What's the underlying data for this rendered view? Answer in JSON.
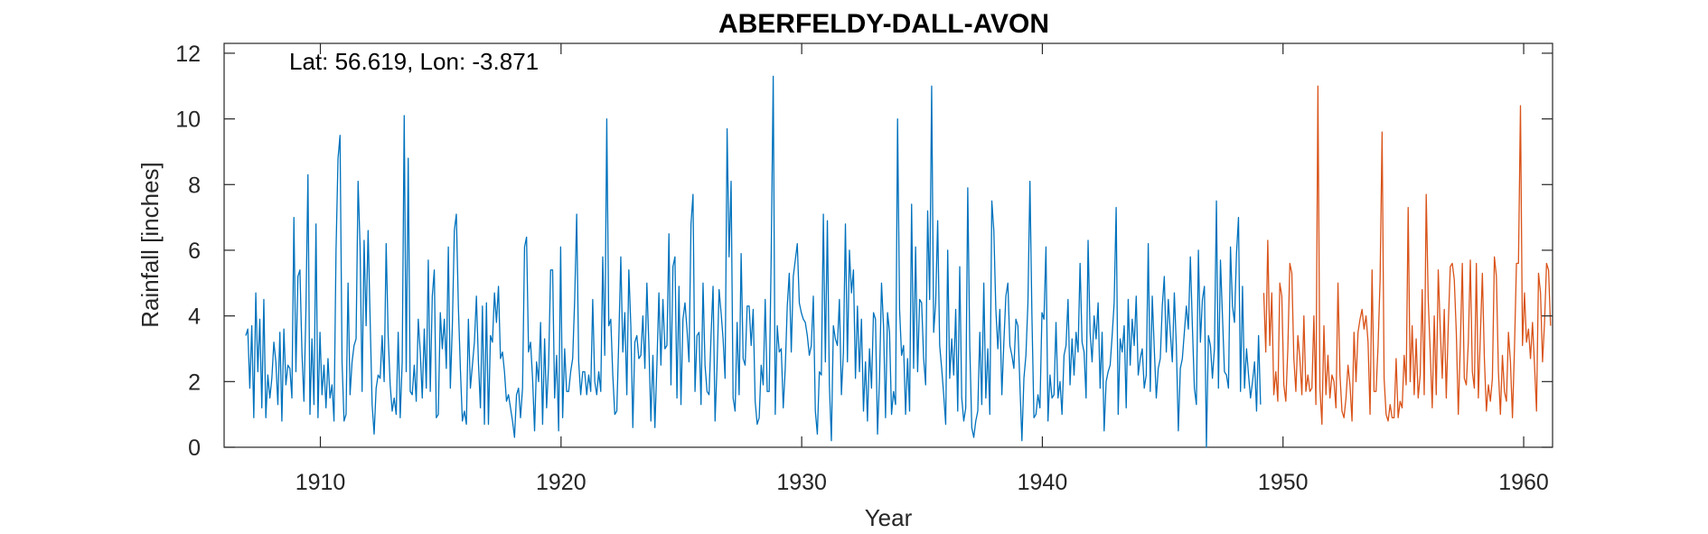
{
  "chart_data": {
    "type": "line",
    "title": "ABERFELDY-DALL-AVON",
    "xlabel": "Year",
    "ylabel": "Rainfall [inches]",
    "annotation": "Lat: 56.619, Lon: -3.871",
    "xlim": [
      1906,
      1961.2
    ],
    "ylim": [
      0,
      12.3
    ],
    "xticks": [
      1910,
      1920,
      1930,
      1940,
      1950,
      1960
    ],
    "yticks": [
      0,
      2,
      4,
      6,
      8,
      10,
      12
    ],
    "grid": false,
    "legend": "none",
    "series": [
      {
        "color": "#0072BD",
        "x_start": 1906.9,
        "x_step": 0.0833333,
        "values": [
          3.4,
          3.6,
          1.8,
          3.7,
          0.9,
          4.7,
          2.3,
          3.9,
          1.2,
          4.5,
          0.9,
          2.2,
          1.5,
          2.1,
          3.2,
          2.6,
          1.3,
          3.5,
          0.8,
          3.6,
          1.9,
          2.5,
          2.4,
          1.5,
          7.0,
          2.3,
          5.2,
          5.4,
          2.9,
          1.4,
          4.2,
          8.3,
          1.0,
          3.3,
          1.3,
          6.8,
          0.9,
          3.5,
          1.6,
          2.5,
          1.2,
          2.7,
          1.5,
          1.9,
          0.8,
          6.0,
          8.8,
          9.5,
          2.6,
          0.8,
          1.0,
          5.0,
          1.6,
          2.6,
          3.1,
          3.3,
          8.1,
          6.1,
          1.7,
          6.3,
          3.7,
          6.6,
          3.9,
          1.3,
          0.4,
          1.8,
          2.2,
          2.1,
          3.4,
          2.0,
          6.2,
          3.4,
          1.9,
          1.1,
          1.5,
          1.0,
          3.5,
          0.9,
          2.6,
          10.1,
          2.3,
          8.8,
          1.7,
          1.6,
          2.5,
          1.4,
          3.9,
          2.9,
          1.5,
          3.6,
          1.8,
          5.7,
          1.7,
          4.6,
          5.4,
          0.9,
          1.0,
          4.1,
          3.0,
          3.9,
          2.4,
          6.1,
          1.8,
          3.7,
          6.6,
          7.1,
          4.3,
          2.4,
          0.8,
          1.1,
          0.7,
          3.9,
          1.8,
          2.5,
          3.2,
          4.6,
          2.6,
          1.2,
          4.3,
          0.7,
          4.4,
          0.7,
          3.4,
          3.2,
          4.7,
          3.8,
          4.9,
          2.7,
          2.9,
          2.3,
          1.4,
          1.6,
          1.2,
          0.8,
          0.3,
          1.6,
          1.8,
          0.9,
          1.8,
          6.1,
          6.4,
          2.9,
          3.2,
          2.1,
          0.5,
          2.6,
          2.0,
          3.8,
          0.7,
          3.3,
          1.2,
          2.5,
          5.4,
          5.4,
          1.5,
          2.8,
          0.5,
          6.1,
          0.9,
          3.0,
          1.7,
          1.7,
          2.3,
          2.7,
          4.5,
          7.1,
          2.6,
          1.6,
          2.3,
          2.3,
          1.6,
          2.2,
          1.7,
          4.5,
          2.0,
          1.6,
          2.3,
          1.7,
          5.8,
          2.8,
          10.0,
          3.7,
          3.9,
          2.2,
          1.0,
          1.1,
          3.3,
          5.8,
          2.9,
          4.1,
          1.6,
          5.4,
          3.7,
          0.6,
          3.2,
          3.4,
          2.7,
          2.8,
          4.0,
          2.4,
          5.0,
          3.1,
          0.8,
          2.8,
          0.6,
          2.5,
          4.7,
          2.5,
          4.5,
          3.0,
          3.1,
          6.5,
          1.9,
          5.5,
          5.8,
          1.5,
          4.9,
          1.3,
          3.9,
          4.4,
          3.6,
          2.6,
          6.8,
          7.7,
          1.7,
          3.4,
          3.5,
          1.3,
          5.0,
          2.5,
          1.7,
          1.6,
          3.4,
          4.9,
          0.8,
          2.5,
          4.8,
          4.1,
          3.3,
          2.1,
          9.7,
          5.8,
          8.1,
          1.5,
          1.1,
          3.8,
          1.6,
          5.9,
          2.7,
          2.5,
          4.3,
          4.3,
          3.1,
          4.2,
          1.4,
          0.7,
          0.9,
          2.5,
          1.9,
          4.5,
          1.7,
          1.7,
          5.9,
          11.3,
          1.0,
          3.7,
          2.9,
          3.0,
          1.2,
          2.4,
          4.3,
          5.3,
          2.9,
          5.2,
          5.7,
          6.2,
          4.4,
          4.1,
          3.9,
          3.8,
          3.4,
          2.8,
          3.1,
          4.6,
          1.1,
          0.4,
          2.3,
          2.2,
          7.1,
          2.6,
          6.9,
          1.9,
          0.2,
          3.7,
          3.3,
          3.1,
          4.5,
          1.6,
          2.9,
          6.8,
          2.6,
          6.0,
          4.7,
          5.4,
          2.1,
          4.3,
          2.3,
          3.9,
          1.1,
          2.6,
          0.8,
          3.0,
          1.8,
          4.1,
          3.9,
          0.4,
          2.1,
          5.0,
          3.7,
          0.9,
          4.1,
          3.5,
          1.0,
          1.7,
          1.3,
          10.0,
          4.2,
          2.8,
          3.1,
          1.0,
          2.7,
          1.1,
          7.4,
          2.4,
          6.1,
          2.3,
          4.5,
          4.4,
          2.7,
          1.9,
          7.2,
          4.5,
          11.0,
          3.5,
          4.4,
          6.9,
          3.1,
          2.4,
          1.6,
          0.7,
          6.0,
          2.1,
          3.3,
          2.2,
          4.2,
          1.1,
          5.5,
          1.5,
          0.8,
          1.2,
          7.9,
          3.1,
          0.6,
          0.3,
          0.8,
          1.1,
          3.5,
          1.3,
          5.0,
          1.5,
          3.0,
          1.0,
          7.5,
          6.6,
          4.2,
          3.0,
          4.2,
          1.6,
          3.2,
          4.6,
          5.0,
          3.1,
          2.8,
          2.4,
          3.9,
          3.7,
          1.9,
          0.2,
          2.1,
          2.8,
          4.4,
          8.1,
          4.0,
          0.9,
          1.0,
          1.6,
          1.2,
          4.1,
          3.9,
          6.1,
          0.8,
          2.2,
          1.5,
          1.6,
          3.8,
          1.5,
          2.0,
          1.0,
          2.8,
          3.1,
          4.5,
          1.9,
          3.3,
          2.2,
          3.5,
          2.9,
          5.6,
          3.2,
          2.9,
          1.5,
          6.3,
          3.5,
          2.6,
          4.0,
          3.3,
          4.4,
          1.8,
          3.5,
          0.5,
          2.0,
          2.3,
          2.5,
          3.4,
          4.4,
          7.3,
          1.0,
          3.3,
          2.9,
          3.7,
          1.2,
          4.5,
          2.5,
          3.9,
          3.1,
          4.6,
          2.2,
          2.7,
          3.0,
          1.8,
          2.2,
          6.2,
          1.7,
          4.6,
          3.0,
          1.5,
          2.4,
          2.7,
          4.3,
          5.2,
          2.9,
          4.5,
          3.5,
          2.6,
          4.7,
          3.1,
          0.5,
          2.4,
          2.7,
          3.5,
          4.3,
          3.6,
          5.8,
          3.7,
          1.8,
          1.3,
          6.0,
          3.2,
          4.5,
          4.9,
          0.0,
          3.4,
          3.1,
          2.1,
          3.0,
          7.5,
          1.8,
          5.7,
          4.0,
          2.3,
          2.2,
          1.8,
          6.1,
          4.3,
          3.8,
          5.9,
          7.0,
          1.7,
          4.9,
          1.8,
          3.0,
          2.2,
          1.5,
          2.0,
          2.6,
          1.1,
          3.4,
          1.3
        ]
      },
      {
        "color": "#D95319",
        "x_start": 1949.2,
        "x_step": 0.0833333,
        "values": [
          4.7,
          2.9,
          6.3,
          3.1,
          4.7,
          1.6,
          2.3,
          1.4,
          5.0,
          4.6,
          1.9,
          1.4,
          3.0,
          5.6,
          5.3,
          2.7,
          1.7,
          3.4,
          2.7,
          1.6,
          4.0,
          1.7,
          2.2,
          1.7,
          1.8,
          4.0,
          1.3,
          11.0,
          1.8,
          0.7,
          3.7,
          1.6,
          2.8,
          1.5,
          2.2,
          2.0,
          1.2,
          5.0,
          2.2,
          1.1,
          0.9,
          1.5,
          2.5,
          1.9,
          0.8,
          3.5,
          2.0,
          3.5,
          3.9,
          4.2,
          3.6,
          4.0,
          3.2,
          1.0,
          5.4,
          1.7,
          1.7,
          3.1,
          5.1,
          9.6,
          2.1,
          1.0,
          0.8,
          1.3,
          0.9,
          0.9,
          2.7,
          0.9,
          1.4,
          1.2,
          2.8,
          1.9,
          7.3,
          2.0,
          3.7,
          1.6,
          3.3,
          1.5,
          2.2,
          4.8,
          1.6,
          7.7,
          4.5,
          2.9,
          1.2,
          4.0,
          1.6,
          5.4,
          3.6,
          2.1,
          4.2,
          1.5,
          3.7,
          5.5,
          5.6,
          5.1,
          3.5,
          1.0,
          3.1,
          5.6,
          2.1,
          1.9,
          3.2,
          5.7,
          2.3,
          1.8,
          5.6,
          1.5,
          3.4,
          5.3,
          2.7,
          1.1,
          1.9,
          1.4,
          2.1,
          5.8,
          5.2,
          2.3,
          1.0,
          2.8,
          1.7,
          1.4,
          3.5,
          2.6,
          0.9,
          3.0,
          5.6,
          5.6,
          10.4,
          3.1,
          4.7,
          3.2,
          3.6,
          2.7,
          3.8,
          2.5,
          1.1,
          5.3,
          4.7,
          2.6,
          3.8,
          5.6,
          5.4,
          3.7
        ]
      }
    ]
  }
}
